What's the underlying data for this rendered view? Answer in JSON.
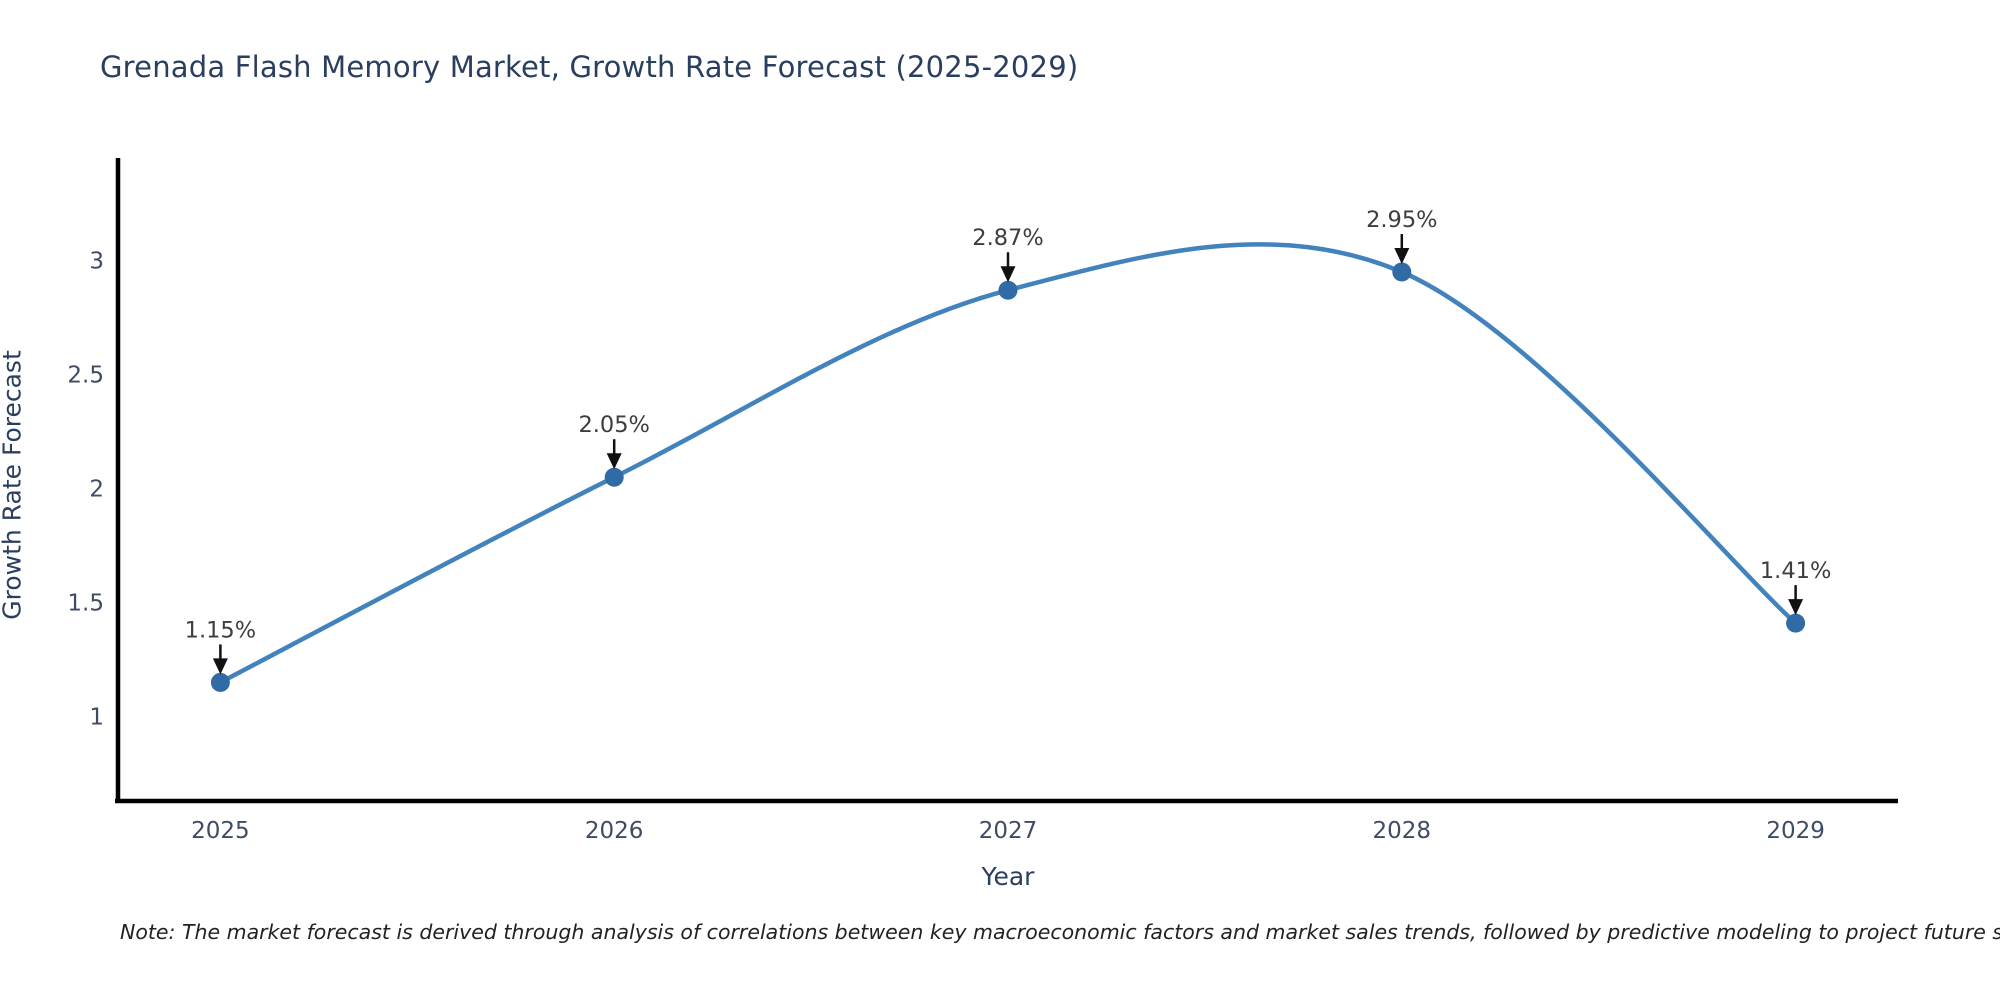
{
  "title": {
    "text": "Grenada Flash Memory Market, Growth Rate Forecast (2025-2029)",
    "color": "#2a3f5f"
  },
  "note": {
    "text": "Note: The market forecast is derived through analysis of correlations between key macroeconomic factors and market sales trends, followed by predictive modeling to project future sales"
  },
  "chart_data": {
    "type": "line",
    "line_shape": "spline",
    "title": "Grenada Flash Memory Market, Growth Rate Forecast (2025-2029)",
    "xlabel": "Year",
    "ylabel": "Growth Rate Forecast",
    "x": [
      2025,
      2026,
      2027,
      2028,
      2029
    ],
    "y": [
      1.15,
      2.05,
      2.87,
      2.95,
      1.41
    ],
    "point_labels": [
      "1.15%",
      "2.05%",
      "2.87%",
      "2.95%",
      "1.41%"
    ],
    "xtick_labels": [
      "2025",
      "2026",
      "2027",
      "2028",
      "2029"
    ],
    "ytick_values": [
      1,
      1.5,
      2,
      2.5,
      3
    ],
    "ytick_labels": [
      "1",
      "1.5",
      "2",
      "2.5",
      "3"
    ],
    "xlim": [
      2024.74,
      2029.26
    ],
    "ylim": [
      0.63,
      3.45
    ],
    "grid": false,
    "legend": false,
    "annotations_have_arrows": true,
    "colors": {
      "line": "#4383bd",
      "marker": "#306ba6",
      "axis_line": "#000000",
      "tick_label": "#3f4c63",
      "axis_title": "#2a3f5f",
      "annotation_text": "#3d3d3d",
      "annotation_arrow": "#111111",
      "background": "#ffffff"
    }
  }
}
